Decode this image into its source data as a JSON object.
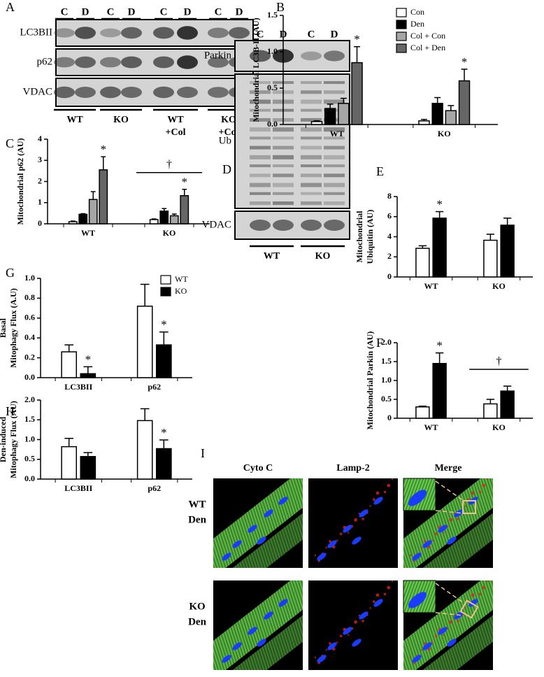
{
  "panels": {
    "A": {
      "letter": "A",
      "lanes": [
        "C",
        "D",
        "C",
        "D",
        "C",
        "D",
        "C",
        "D"
      ],
      "rows": [
        "LC3BII",
        "p62",
        "VDAC"
      ],
      "groups": [
        [
          "WT"
        ],
        [
          "KO"
        ],
        [
          "WT",
          "+Col"
        ],
        [
          "KO",
          "+Col"
        ]
      ]
    },
    "D": {
      "letter": "D",
      "lanes": [
        "C",
        "D",
        "C",
        "D"
      ],
      "rows": [
        "Parkin",
        "Ub",
        "VDAC"
      ],
      "groups": [
        [
          "WT"
        ],
        [
          "KO"
        ]
      ]
    },
    "I": {
      "letter": "I",
      "columns": [
        "Cyto C",
        "Lamp-2",
        "Merge"
      ],
      "rows": [
        [
          "WT",
          "Den"
        ],
        [
          "KO",
          "Den"
        ]
      ]
    }
  },
  "chart_data": [
    {
      "type": "bar",
      "letter": "B",
      "ylabel": [
        "Mitochondrial LC3B-II (AU)"
      ],
      "categories": [
        "WT",
        "KO"
      ],
      "ylim": [
        0,
        1.5
      ],
      "yticks": [
        {
          "value": 0,
          "label": "0.0"
        },
        0.5,
        {
          "value": 1,
          "label": "1.0"
        },
        1.5
      ],
      "legend": "upper right",
      "series": [
        {
          "name": "Con",
          "color": "#ffffff",
          "values": [
            0.04,
            0.05
          ],
          "errors": [
            0.01,
            0.02
          ],
          "annotations": [
            null,
            null
          ]
        },
        {
          "name": "Den",
          "color": "#000000",
          "values": [
            0.22,
            0.29
          ],
          "errors": [
            0.06,
            0.08
          ],
          "annotations": [
            null,
            null
          ]
        },
        {
          "name": "Col + Con",
          "color": "#a6a6a6",
          "values": [
            0.29,
            0.19
          ],
          "errors": [
            0.07,
            0.07
          ],
          "annotations": [
            null,
            null
          ]
        },
        {
          "name": "Col + Den",
          "color": "#666666",
          "values": [
            0.85,
            0.6
          ],
          "errors": [
            0.22,
            0.16
          ],
          "annotations": [
            "*",
            "*"
          ]
        }
      ]
    },
    {
      "type": "bar",
      "letter": "C",
      "ylabel": [
        "Mitochondrial p62 (AU)"
      ],
      "categories": [
        "WT",
        "KO"
      ],
      "ylim": [
        0,
        4
      ],
      "yticks": [
        0,
        1,
        2,
        3,
        4
      ],
      "category_annotations": [
        null,
        "†"
      ],
      "series": [
        {
          "color": "#ffffff",
          "values": [
            0.1,
            0.2
          ],
          "errors": [
            0.03,
            0.03
          ],
          "annotations": [
            null,
            null
          ]
        },
        {
          "color": "#000000",
          "values": [
            0.45,
            0.6
          ],
          "errors": [
            0.03,
            0.12
          ],
          "annotations": [
            null,
            null
          ]
        },
        {
          "color": "#a6a6a6",
          "values": [
            1.15,
            0.38
          ],
          "errors": [
            0.37,
            0.08
          ],
          "annotations": [
            null,
            null
          ]
        },
        {
          "color": "#666666",
          "values": [
            2.55,
            1.33
          ],
          "errors": [
            0.62,
            0.3
          ],
          "annotations": [
            "*",
            "*"
          ]
        }
      ]
    },
    {
      "type": "bar",
      "letter": "E",
      "ylabel": [
        "Mitochondrial",
        "Ubiquitin (AU)"
      ],
      "categories": [
        "WT",
        "KO"
      ],
      "ylim": [
        0,
        8
      ],
      "yticks": [
        0,
        2,
        4,
        6,
        8
      ],
      "series": [
        {
          "color": "#ffffff",
          "values": [
            2.85,
            3.65
          ],
          "errors": [
            0.25,
            0.6
          ],
          "annotations": [
            null,
            null
          ]
        },
        {
          "color": "#000000",
          "values": [
            5.85,
            5.15
          ],
          "errors": [
            0.65,
            0.7
          ],
          "annotations": [
            "*",
            null
          ]
        }
      ]
    },
    {
      "type": "bar",
      "letter": "F",
      "ylabel": [
        "Mitochondrial Parkin (AU)"
      ],
      "categories": [
        "WT",
        "KO"
      ],
      "ylim": [
        0,
        2
      ],
      "yticks": [
        0,
        0.5,
        {
          "value": 1,
          "label": "1.0"
        },
        1.5,
        {
          "value": 2,
          "label": "2.0"
        }
      ],
      "category_annotations": [
        null,
        "†"
      ],
      "series": [
        {
          "color": "#ffffff",
          "values": [
            0.3,
            0.38
          ],
          "errors": [
            0.02,
            0.12
          ],
          "annotations": [
            null,
            null
          ]
        },
        {
          "color": "#000000",
          "values": [
            1.45,
            0.72
          ],
          "errors": [
            0.28,
            0.13
          ],
          "annotations": [
            "*",
            null
          ]
        }
      ]
    },
    {
      "type": "bar",
      "letter": "G",
      "ylabel": [
        "Basal",
        "Mitophagy Flux (A.U)"
      ],
      "categories": [
        "LC3BII",
        "p62"
      ],
      "ylim": [
        0,
        1
      ],
      "yticks": [
        {
          "value": 0,
          "label": "0.0"
        },
        0.2,
        0.4,
        0.6,
        0.8,
        {
          "value": 1,
          "label": "1.0"
        }
      ],
      "legend": "upper right",
      "series": [
        {
          "name": "WT",
          "color": "#ffffff",
          "values": [
            0.26,
            0.72
          ],
          "errors": [
            0.07,
            0.22
          ],
          "annotations": [
            null,
            null
          ]
        },
        {
          "name": "KO",
          "color": "#000000",
          "values": [
            0.04,
            0.33
          ],
          "errors": [
            0.07,
            0.13
          ],
          "annotations": [
            "*",
            "*"
          ]
        }
      ]
    },
    {
      "type": "bar",
      "letter": "H",
      "ylabel": [
        "Den-induced",
        "Mitophagy Flux (AU)"
      ],
      "categories": [
        "LC3BII",
        "p62"
      ],
      "ylim": [
        0,
        2
      ],
      "yticks": [
        {
          "value": 0,
          "label": "0.0"
        },
        0.5,
        {
          "value": 1,
          "label": "1.0"
        },
        1.5,
        {
          "value": 2,
          "label": "2.0"
        }
      ],
      "series": [
        {
          "color": "#ffffff",
          "values": [
            0.82,
            1.48
          ],
          "errors": [
            0.21,
            0.3
          ],
          "annotations": [
            null,
            null
          ]
        },
        {
          "color": "#000000",
          "values": [
            0.57,
            0.77
          ],
          "errors": [
            0.1,
            0.22
          ],
          "annotations": [
            null,
            "*"
          ]
        }
      ]
    }
  ]
}
